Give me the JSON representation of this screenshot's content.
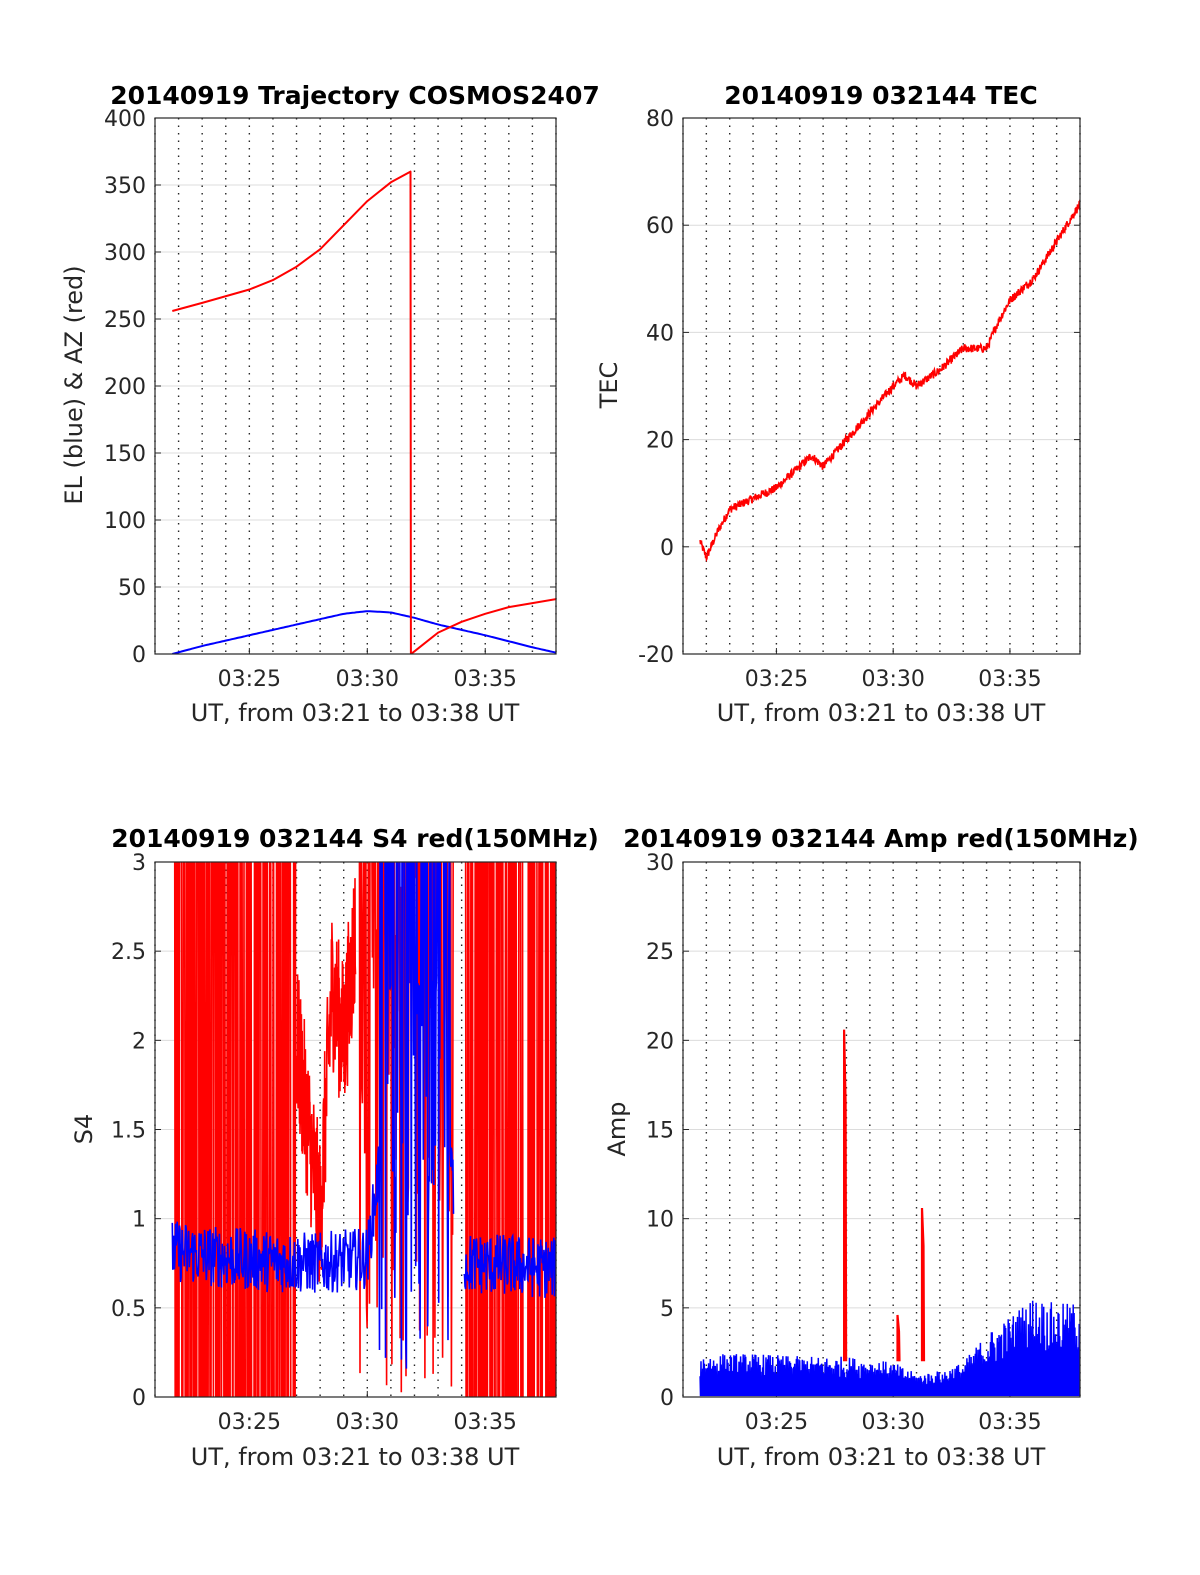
{
  "figure": {
    "date": "20140919",
    "satellite": "COSMOS2407"
  },
  "colors": {
    "el": "#0000ff",
    "az": "#ff0000",
    "tec": "#ff0000",
    "s4": "#ff0000",
    "s4_alt": "#0000ff",
    "amp": "#0000ff",
    "amp_spike": "#ff0000",
    "grid": "#dcdcdc",
    "frame": "#262626",
    "minor_grid": "#262626"
  },
  "chart_data": [
    {
      "id": "trajectory",
      "type": "line",
      "title": "20140919 Trajectory COSMOS2407",
      "xlabel": "UT, from 03:21 to 03:38 UT",
      "ylabel": "EL (blue) & AZ (red)",
      "xlim": [
        "03:21",
        "03:38"
      ],
      "ylim": [
        0,
        400
      ],
      "xticks": [
        "03:25",
        "03:30",
        "03:35"
      ],
      "yticks": [
        "0",
        "50",
        "100",
        "150",
        "200",
        "250",
        "300",
        "350",
        "400"
      ],
      "grid": true,
      "series": [
        {
          "name": "EL",
          "color": "#0000ff",
          "x": [
            "03:21:44",
            "03:23",
            "03:25",
            "03:27",
            "03:29",
            "03:30",
            "03:31",
            "03:32",
            "03:33",
            "03:35",
            "03:37",
            "03:38"
          ],
          "y": [
            0,
            6,
            14,
            22,
            30,
            32,
            31,
            27,
            22,
            14,
            5,
            1
          ]
        },
        {
          "name": "AZ",
          "color": "#ff0000",
          "x": [
            "03:21:44",
            "03:23",
            "03:25",
            "03:26",
            "03:27",
            "03:28",
            "03:29",
            "03:30",
            "03:31",
            "03:31:50",
            "03:31:51",
            "03:32",
            "03:33",
            "03:34",
            "03:35",
            "03:36",
            "03:37",
            "03:38"
          ],
          "y": [
            256,
            262,
            272,
            279,
            289,
            302,
            320,
            338,
            352,
            360,
            0,
            2,
            16,
            24,
            30,
            35,
            38,
            41
          ]
        }
      ]
    },
    {
      "id": "tec",
      "type": "line",
      "title": "20140919 032144 TEC",
      "xlabel": "UT, from 03:21 to 03:38 UT",
      "ylabel": "TEC",
      "xlim": [
        "03:21",
        "03:38"
      ],
      "ylim": [
        -20,
        80
      ],
      "xticks": [
        "03:25",
        "03:30",
        "03:35"
      ],
      "yticks": [
        "-20",
        "0",
        "20",
        "40",
        "60",
        "80"
      ],
      "grid": true,
      "series": [
        {
          "name": "TEC",
          "color": "#ff0000",
          "x": [
            "03:21:44",
            "03:22",
            "03:22:30",
            "03:23",
            "03:24",
            "03:25",
            "03:26",
            "03:26:30",
            "03:27",
            "03:28",
            "03:29",
            "03:30",
            "03:30:30",
            "03:31",
            "03:32",
            "03:33",
            "03:34",
            "03:34:30",
            "03:35",
            "03:36",
            "03:37",
            "03:38"
          ],
          "y": [
            1,
            -2,
            3,
            7,
            9,
            11,
            15,
            17,
            15,
            20,
            25,
            30,
            32,
            30,
            33,
            37,
            37,
            42,
            46,
            50,
            57,
            64
          ]
        }
      ]
    },
    {
      "id": "s4",
      "type": "line",
      "title": "20140919 032144 S4 red(150MHz)",
      "xlabel": "UT, from 03:21 to 03:38 UT",
      "ylabel": "S4",
      "xlim": [
        "03:21",
        "03:38"
      ],
      "ylim": [
        0,
        3
      ],
      "xticks": [
        "03:25",
        "03:30",
        "03:35"
      ],
      "yticks": [
        "0",
        "0.5",
        "1",
        "1.5",
        "2",
        "2.5",
        "3"
      ],
      "grid": true,
      "series": [
        {
          "color": "#ff0000",
          "note": "saturated oscillation 0-3 from 03:21:44 to 03:27, broken cluster 03:28-03:34, full range 03:34-03:38",
          "x": [
            "03:27",
            "03:27:30",
            "03:28",
            "03:28:30",
            "03:29",
            "03:29:30"
          ],
          "y": [
            2.0,
            1.5,
            1.0,
            2.3,
            2.0,
            2.6
          ]
        },
        {
          "color": "#0000ff",
          "x": [
            "03:21:44",
            "03:24",
            "03:26",
            "03:28",
            "03:30",
            "03:31",
            "03:32",
            "03:33",
            "03:34",
            "03:36",
            "03:38"
          ],
          "y": [
            0.82,
            0.78,
            0.76,
            0.75,
            0.78,
            1.8,
            2.5,
            2.0,
            0.75,
            0.74,
            0.72
          ]
        }
      ]
    },
    {
      "id": "amp",
      "type": "line",
      "title": "20140919 032144 Amp red(150MHz)",
      "xlabel": "UT, from 03:21 to 03:38 UT",
      "ylabel": "Amp",
      "xlim": [
        "03:21",
        "03:38"
      ],
      "ylim": [
        0,
        30
      ],
      "xticks": [
        "03:25",
        "03:30",
        "03:35"
      ],
      "yticks": [
        "0",
        "5",
        "10",
        "15",
        "20",
        "25",
        "30"
      ],
      "grid": true,
      "series": [
        {
          "color": "#0000ff",
          "x": [
            "03:21:44",
            "03:24",
            "03:26",
            "03:28",
            "03:30",
            "03:31",
            "03:32",
            "03:33",
            "03:34",
            "03:35",
            "03:36",
            "03:37",
            "03:38"
          ],
          "y": [
            1.5,
            1.5,
            1.4,
            1.4,
            1.2,
            0.8,
            0.9,
            1.2,
            2.2,
            2.8,
            3.5,
            3.2,
            3.3
          ]
        },
        {
          "color": "#ff0000",
          "x": [
            "03:27:54",
            "03:30:11",
            "03:31:14"
          ],
          "y": [
            20.6,
            4.6,
            10.6
          ]
        }
      ]
    }
  ]
}
